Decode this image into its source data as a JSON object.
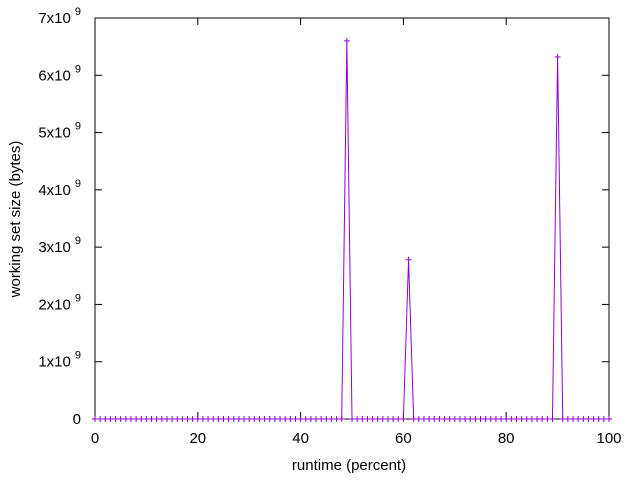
{
  "chart_data": {
    "type": "line",
    "xlabel": "runtime (percent)",
    "ylabel": "working set size (bytes)",
    "xlim": [
      0,
      100
    ],
    "ylim": [
      0,
      7000000000
    ],
    "grid": false,
    "legend": "none",
    "x_ticks": [
      {
        "value": 0,
        "label": "0"
      },
      {
        "value": 20,
        "label": "20"
      },
      {
        "value": 40,
        "label": "40"
      },
      {
        "value": 60,
        "label": "60"
      },
      {
        "value": 80,
        "label": "80"
      },
      {
        "value": 100,
        "label": "100"
      }
    ],
    "y_ticks": [
      {
        "value": 0,
        "label": "0",
        "exp": ""
      },
      {
        "value": 1000000000,
        "label": "1x10",
        "exp": "9"
      },
      {
        "value": 2000000000,
        "label": "2x10",
        "exp": "9"
      },
      {
        "value": 3000000000,
        "label": "3x10",
        "exp": "9"
      },
      {
        "value": 4000000000,
        "label": "4x10",
        "exp": "9"
      },
      {
        "value": 5000000000,
        "label": "5x10",
        "exp": "9"
      },
      {
        "value": 6000000000,
        "label": "6x10",
        "exp": "9"
      },
      {
        "value": 7000000000,
        "label": "7x10",
        "exp": "9"
      }
    ],
    "series": [
      {
        "color": "#9400d3",
        "marker": "plus",
        "x": [
          0,
          1,
          2,
          3,
          4,
          5,
          6,
          7,
          8,
          9,
          10,
          11,
          12,
          13,
          14,
          15,
          16,
          17,
          18,
          19,
          20,
          21,
          22,
          23,
          24,
          25,
          26,
          27,
          28,
          29,
          30,
          31,
          32,
          33,
          34,
          35,
          36,
          37,
          38,
          39,
          40,
          41,
          42,
          43,
          44,
          45,
          46,
          47,
          48,
          49,
          50,
          51,
          52,
          53,
          54,
          55,
          56,
          57,
          58,
          59,
          60,
          61,
          62,
          63,
          64,
          65,
          66,
          67,
          68,
          69,
          70,
          71,
          72,
          73,
          74,
          75,
          76,
          77,
          78,
          79,
          80,
          81,
          82,
          83,
          84,
          85,
          86,
          87,
          88,
          89,
          90,
          91,
          92,
          93,
          94,
          95,
          96,
          97,
          98,
          99,
          100
        ],
        "y": [
          0,
          0,
          0,
          0,
          0,
          0,
          0,
          0,
          0,
          0,
          0,
          0,
          0,
          0,
          0,
          0,
          0,
          0,
          0,
          0,
          0,
          0,
          0,
          0,
          0,
          0,
          0,
          0,
          0,
          0,
          0,
          0,
          0,
          0,
          0,
          0,
          0,
          0,
          0,
          0,
          0,
          0,
          0,
          0,
          0,
          0,
          0,
          0,
          0,
          6600000000,
          0,
          0,
          0,
          0,
          0,
          0,
          0,
          0,
          0,
          0,
          0,
          2780000000,
          0,
          0,
          0,
          0,
          0,
          0,
          0,
          0,
          0,
          0,
          0,
          0,
          0,
          0,
          0,
          0,
          0,
          0,
          0,
          0,
          0,
          0,
          0,
          0,
          0,
          0,
          0,
          0,
          6320000000,
          0,
          0,
          0,
          0,
          0,
          0,
          0,
          0,
          0,
          0
        ]
      }
    ]
  }
}
